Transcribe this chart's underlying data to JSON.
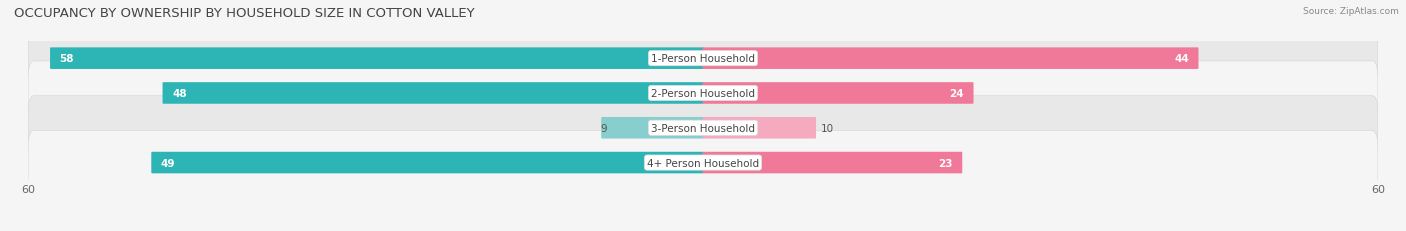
{
  "title": "OCCUPANCY BY OWNERSHIP BY HOUSEHOLD SIZE IN COTTON VALLEY",
  "source": "Source: ZipAtlas.com",
  "categories": [
    "1-Person Household",
    "2-Person Household",
    "3-Person Household",
    "4+ Person Household"
  ],
  "owner_values": [
    58,
    48,
    9,
    49
  ],
  "renter_values": [
    44,
    24,
    10,
    23
  ],
  "owner_color": "#2db5b5",
  "renter_color": "#f07898",
  "owner_light_color": "#88cece",
  "renter_light_color": "#f5aabf",
  "axis_max": 60,
  "bg_row_colors": [
    "#e8e8e8",
    "#f5f5f5",
    "#e8e8e8",
    "#f5f5f5"
  ],
  "bar_height": 0.52,
  "title_fontsize": 9.5,
  "label_fontsize": 7.5,
  "tick_fontsize": 8,
  "fig_bg": "#f5f5f5"
}
